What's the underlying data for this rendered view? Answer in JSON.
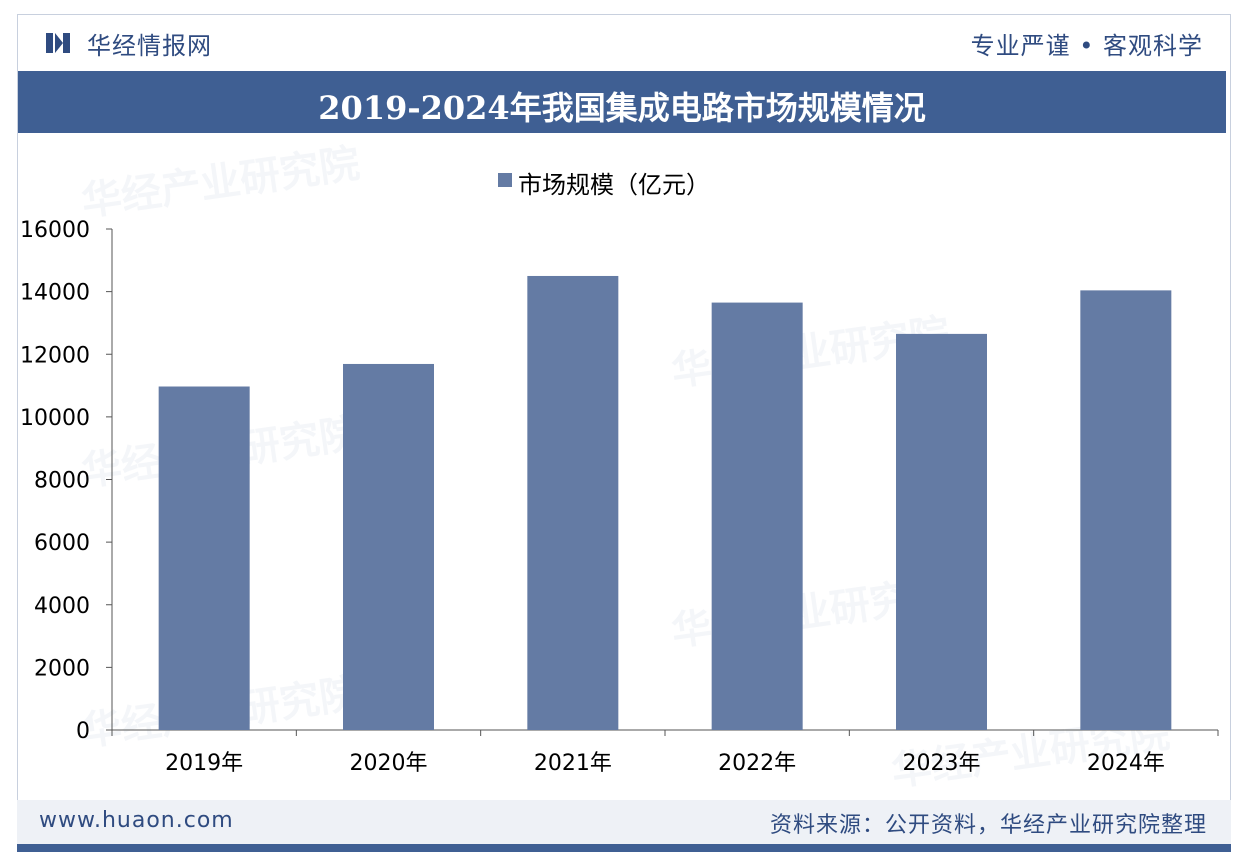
{
  "header": {
    "brand": "华经情报网",
    "slogan": "专业严谨 • 客观科学"
  },
  "title": "2019-2024年我国集成电路市场规模情况",
  "footer": {
    "website": "www.huaon.com",
    "source": "资料来源：公开资料，华经产业研究院整理"
  },
  "watermark": {
    "text": "华经产业研究院",
    "url": "www.huaon.com"
  },
  "colors": {
    "bar": "#647ba4",
    "accent": "#3f5f93",
    "axis": "#555555",
    "text": "#000000"
  },
  "chart_data": {
    "type": "bar",
    "categories": [
      "2019年",
      "2020年",
      "2021年",
      "2022年",
      "2023年",
      "2024年"
    ],
    "series": [
      {
        "name": "市场规模（亿元）",
        "values": [
          10970,
          11690,
          14500,
          13650,
          12650,
          14040
        ]
      }
    ],
    "title": "2019-2024年我国集成电路市场规模情况",
    "ylim": [
      0,
      16000
    ],
    "yticks": [
      0,
      2000,
      4000,
      6000,
      8000,
      10000,
      12000,
      14000,
      16000
    ],
    "grid": false,
    "legend_position": "top-center"
  }
}
